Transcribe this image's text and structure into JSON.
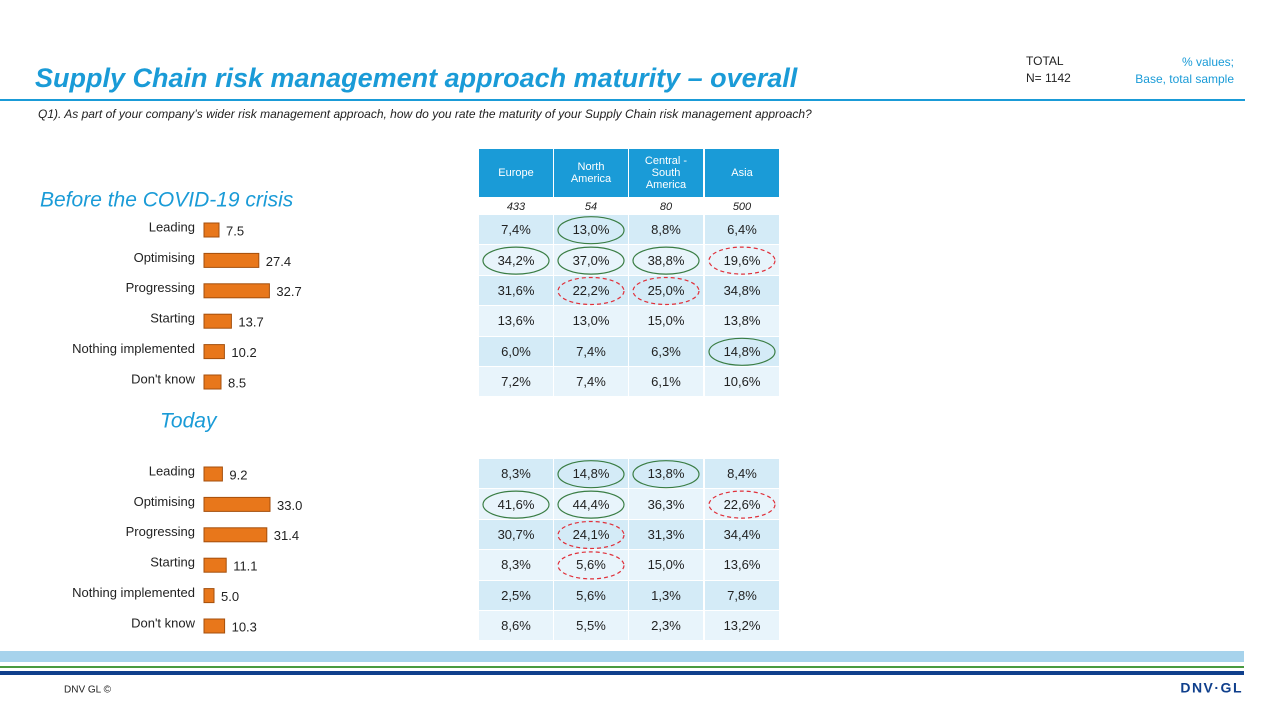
{
  "header": {
    "title": "Supply Chain risk management approach maturity – overall",
    "total_label": "TOTAL",
    "total_n": "N= 1142",
    "note_1": "% values;",
    "note_2": "Base, total sample",
    "question": "Q1). As part of your company’s wider risk management approach, how do you rate the maturity of your Supply  Chain risk management approach?"
  },
  "chart_data": [
    {
      "type": "bar",
      "orientation": "horizontal",
      "title": "Before the COVID-19 crisis",
      "color": "#e8771b",
      "categories": [
        "Leading",
        "Optimising",
        "Progressing",
        "Starting",
        "Nothing implemented",
        "Don't know"
      ],
      "values": [
        7.5,
        27.4,
        32.7,
        13.7,
        10.2,
        8.5
      ],
      "value_labels": [
        "7.5",
        "27.4",
        "32.7",
        "13.7",
        "10.2",
        "8.5"
      ]
    },
    {
      "type": "bar",
      "orientation": "horizontal",
      "title": "Today",
      "color": "#e8771b",
      "categories": [
        "Leading",
        "Optimising",
        "Progressing",
        "Starting",
        "Nothing implemented",
        "Don't know"
      ],
      "values": [
        9.2,
        33.0,
        31.4,
        11.1,
        5.0,
        10.3
      ],
      "value_labels": [
        "9.2",
        "33.0",
        "31.4",
        "11.1",
        "5.0",
        "10.3"
      ]
    }
  ],
  "table_header": {
    "columns": [
      "Europe",
      "North America",
      "Central - South America",
      "Asia"
    ],
    "bases": [
      "433",
      "54",
      "80",
      "500"
    ]
  },
  "tables": [
    {
      "rows": [
        [
          "7,4%",
          {
            "text": "13,0%",
            "circle": "higher"
          },
          "8,8%",
          "6,4%"
        ],
        [
          {
            "text": "34,2%",
            "circle": "higher"
          },
          {
            "text": "37,0%",
            "circle": "higher"
          },
          {
            "text": "38,8%",
            "circle": "higher"
          },
          {
            "text": "19,6%",
            "circle": "lower"
          }
        ],
        [
          "31,6%",
          {
            "text": "22,2%",
            "circle": "lower"
          },
          {
            "text": "25,0%",
            "circle": "lower"
          },
          "34,8%"
        ],
        [
          "13,6%",
          "13,0%",
          "15,0%",
          "13,8%"
        ],
        [
          "6,0%",
          "7,4%",
          "6,3%",
          {
            "text": "14,8%",
            "circle": "higher"
          }
        ],
        [
          "7,2%",
          "7,4%",
          "6,1%",
          "10,6%"
        ]
      ]
    },
    {
      "rows": [
        [
          "8,3%",
          {
            "text": "14,8%",
            "circle": "higher"
          },
          {
            "text": "13,8%",
            "circle": "higher"
          },
          "8,4%"
        ],
        [
          {
            "text": "41,6%",
            "circle": "higher"
          },
          {
            "text": "44,4%",
            "circle": "higher"
          },
          "36,3%",
          {
            "text": "22,6%",
            "circle": "lower"
          }
        ],
        [
          "30,7%",
          {
            "text": "24,1%",
            "circle": "lower"
          },
          "31,3%",
          "34,4%"
        ],
        [
          "8,3%",
          {
            "text": "5,6%",
            "circle": "lower"
          },
          "15,0%",
          "13,6%"
        ],
        [
          "2,5%",
          "5,6%",
          "1,3%",
          "7,8%"
        ],
        [
          "8,6%",
          "5,5%",
          "2,3%",
          "13,2%"
        ]
      ]
    }
  ],
  "footer": {
    "copyright": "DNV GL ©",
    "logo": "DNV·GL"
  }
}
